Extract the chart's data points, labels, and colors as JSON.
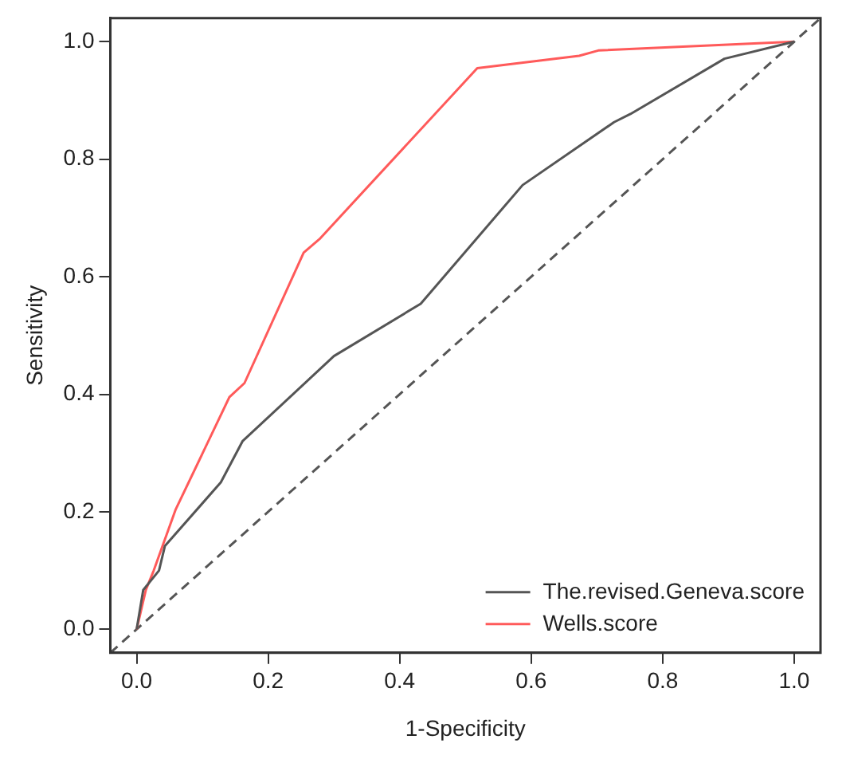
{
  "chart_data": {
    "type": "line",
    "xlabel": "1-Specificity",
    "ylabel": "Sensitivity",
    "xlim": [
      -0.04,
      1.04
    ],
    "ylim": [
      -0.04,
      1.04
    ],
    "xticks": [
      {
        "value": 0,
        "label": "0.0"
      },
      {
        "value": 0.2,
        "label": "0.2"
      },
      {
        "value": 0.4,
        "label": "0.4"
      },
      {
        "value": 0.6,
        "label": "0.6"
      },
      {
        "value": 0.8,
        "label": "0.8"
      },
      {
        "value": 1,
        "label": "1.0"
      }
    ],
    "yticks": [
      {
        "value": 0,
        "label": "0.0"
      },
      {
        "value": 0.2,
        "label": "0.2"
      },
      {
        "value": 0.4,
        "label": "0.4"
      },
      {
        "value": 0.6,
        "label": "0.6"
      },
      {
        "value": 0.8,
        "label": "0.8"
      },
      {
        "value": 1,
        "label": "1.0"
      }
    ],
    "grid": false,
    "legend": "bottom right",
    "marker": "none",
    "series": [
      {
        "name": "The.revised.Geneva.score",
        "color": "#555555",
        "x": [
          0,
          0.01,
          0.034,
          0.043,
          0.128,
          0.161,
          0.3,
          0.432,
          0.587,
          0.726,
          0.751,
          0.894,
          1
        ],
        "values": [
          0,
          0.067,
          0.1,
          0.142,
          0.25,
          0.32,
          0.465,
          0.554,
          0.756,
          0.863,
          0.877,
          0.971,
          1
        ]
      },
      {
        "name": "Wells.score",
        "color": "#ff5a5a",
        "x": [
          0,
          0.014,
          0.026,
          0.059,
          0.141,
          0.164,
          0.254,
          0.278,
          0.518,
          0.673,
          0.702,
          1
        ],
        "values": [
          0,
          0.067,
          0.1,
          0.203,
          0.395,
          0.419,
          0.641,
          0.664,
          0.955,
          0.976,
          0.985,
          1
        ]
      },
      {
        "type": "line",
        "color": "#555555",
        "line_style": "dashed",
        "x": [
          -0.04,
          1.04
        ],
        "values": [
          -0.04,
          1.04
        ]
      }
    ]
  }
}
